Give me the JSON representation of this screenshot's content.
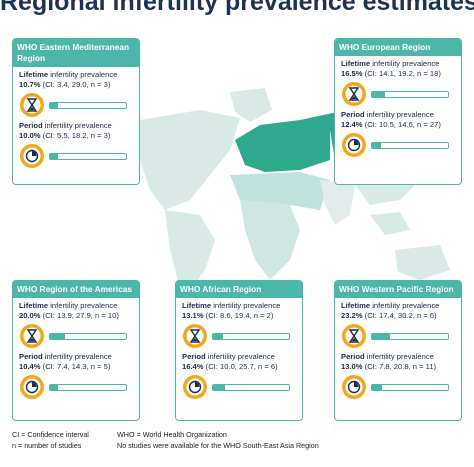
{
  "title": "Regional infertility prevalence estimates",
  "regions": [
    {
      "name": "WHO Eastern Mediterranean Region",
      "lifetime": {
        "label_bold": "Lifetime",
        "label": "infertility prevalence",
        "value": 10.7,
        "value_label": "10.7%",
        "detail": "(CI: 3.4, 29.0, n = 3)"
      },
      "period": {
        "label_bold": "Period",
        "label": "infertility prevalence",
        "value": 10.0,
        "value_label": "10.0%",
        "detail": "(CI: 5.5, 18.2, n = 3)"
      }
    },
    {
      "name": "WHO European Region",
      "lifetime": {
        "label_bold": "Lifetime",
        "label": "infertility prevalence",
        "value": 16.5,
        "value_label": "16.5%",
        "detail": "(CI: 14.1, 19.2, n = 18)"
      },
      "period": {
        "label_bold": "Period",
        "label": "infertility prevalence",
        "value": 12.4,
        "value_label": "12.4%",
        "detail": "(CI: 10.5, 14.6, n = 27)"
      }
    },
    {
      "name": "WHO Region of the Americas",
      "lifetime": {
        "label_bold": "Lifetime",
        "label": "infertility prevalence",
        "value": 20.0,
        "value_label": "20.0%",
        "detail": "(CI: 13.9, 27.9, n = 10)"
      },
      "period": {
        "label_bold": "Period",
        "label": "infertility prevalence",
        "value": 10.4,
        "value_label": "10.4%",
        "detail": "(CI: 7.4, 14.3, n = 5)"
      }
    },
    {
      "name": "WHO African Region",
      "lifetime": {
        "label_bold": "Lifetime",
        "label": "infertility prevalence",
        "value": 13.1,
        "value_label": "13.1%",
        "detail": "(CI: 8.6, 19.4, n = 2)"
      },
      "period": {
        "label_bold": "Period",
        "label": "infertility prevalence",
        "value": 16.4,
        "value_label": "16.4%",
        "detail": "(CI: 10.0, 25.7, n = 6)"
      }
    },
    {
      "name": "WHO Western Pacific Region",
      "lifetime": {
        "label_bold": "Lifetime",
        "label": "infertility prevalence",
        "value": 23.2,
        "value_label": "23.2%",
        "detail": "(CI: 17.4, 30.2, n = 6)"
      },
      "period": {
        "label_bold": "Period",
        "label": "infertility prevalence",
        "value": 13.0,
        "value_label": "13.0%",
        "detail": "(CI: 7.8, 20.8, n = 11)"
      }
    }
  ],
  "notes_left": [
    "CI = Confidence interval",
    "n = number of studies"
  ],
  "notes_right": [
    "WHO = World Health Organization",
    "No studies were available for the WHO South-East Asia Region"
  ]
}
